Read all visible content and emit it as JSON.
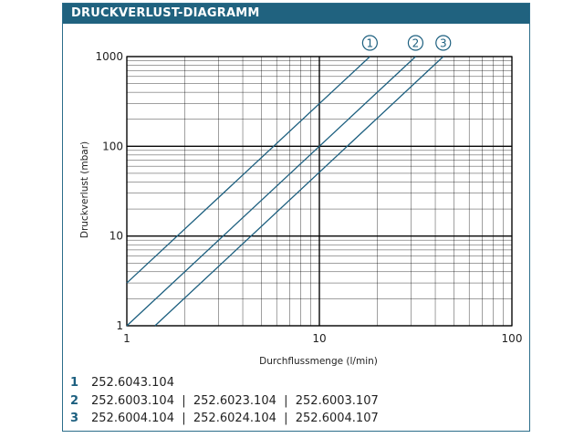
{
  "header": {
    "title": "DRUCKVERLUST-DIAGRAMM"
  },
  "colors": {
    "accent": "#20627f",
    "curve": "#1c5f7f",
    "grid": "#000000"
  },
  "chart_data": {
    "type": "line",
    "xlabel": "Durchflussmenge (l/min)",
    "ylabel": "Druckverlust (mbar)",
    "xscale": "log",
    "yscale": "log",
    "xlim": [
      1,
      100
    ],
    "ylim": [
      1,
      1000
    ],
    "x_ticks": [
      "1",
      "10",
      "100"
    ],
    "y_ticks": [
      "1",
      "10",
      "100",
      "1000"
    ],
    "grid": true,
    "series": [
      {
        "name": "1",
        "x": [
          1,
          18.3
        ],
        "y": [
          3,
          1000
        ]
      },
      {
        "name": "2",
        "x": [
          1,
          31.6
        ],
        "y": [
          1,
          1000
        ]
      },
      {
        "name": "3",
        "x": [
          1.4,
          44
        ],
        "y": [
          1,
          1000
        ]
      }
    ]
  },
  "legend": [
    {
      "num": "1",
      "text": "252.6043.104"
    },
    {
      "num": "2",
      "text": "252.6003.104  |  252.6023.104  |  252.6003.107"
    },
    {
      "num": "3",
      "text": "252.6004.104  |  252.6024.104  |  252.6004.107"
    }
  ]
}
